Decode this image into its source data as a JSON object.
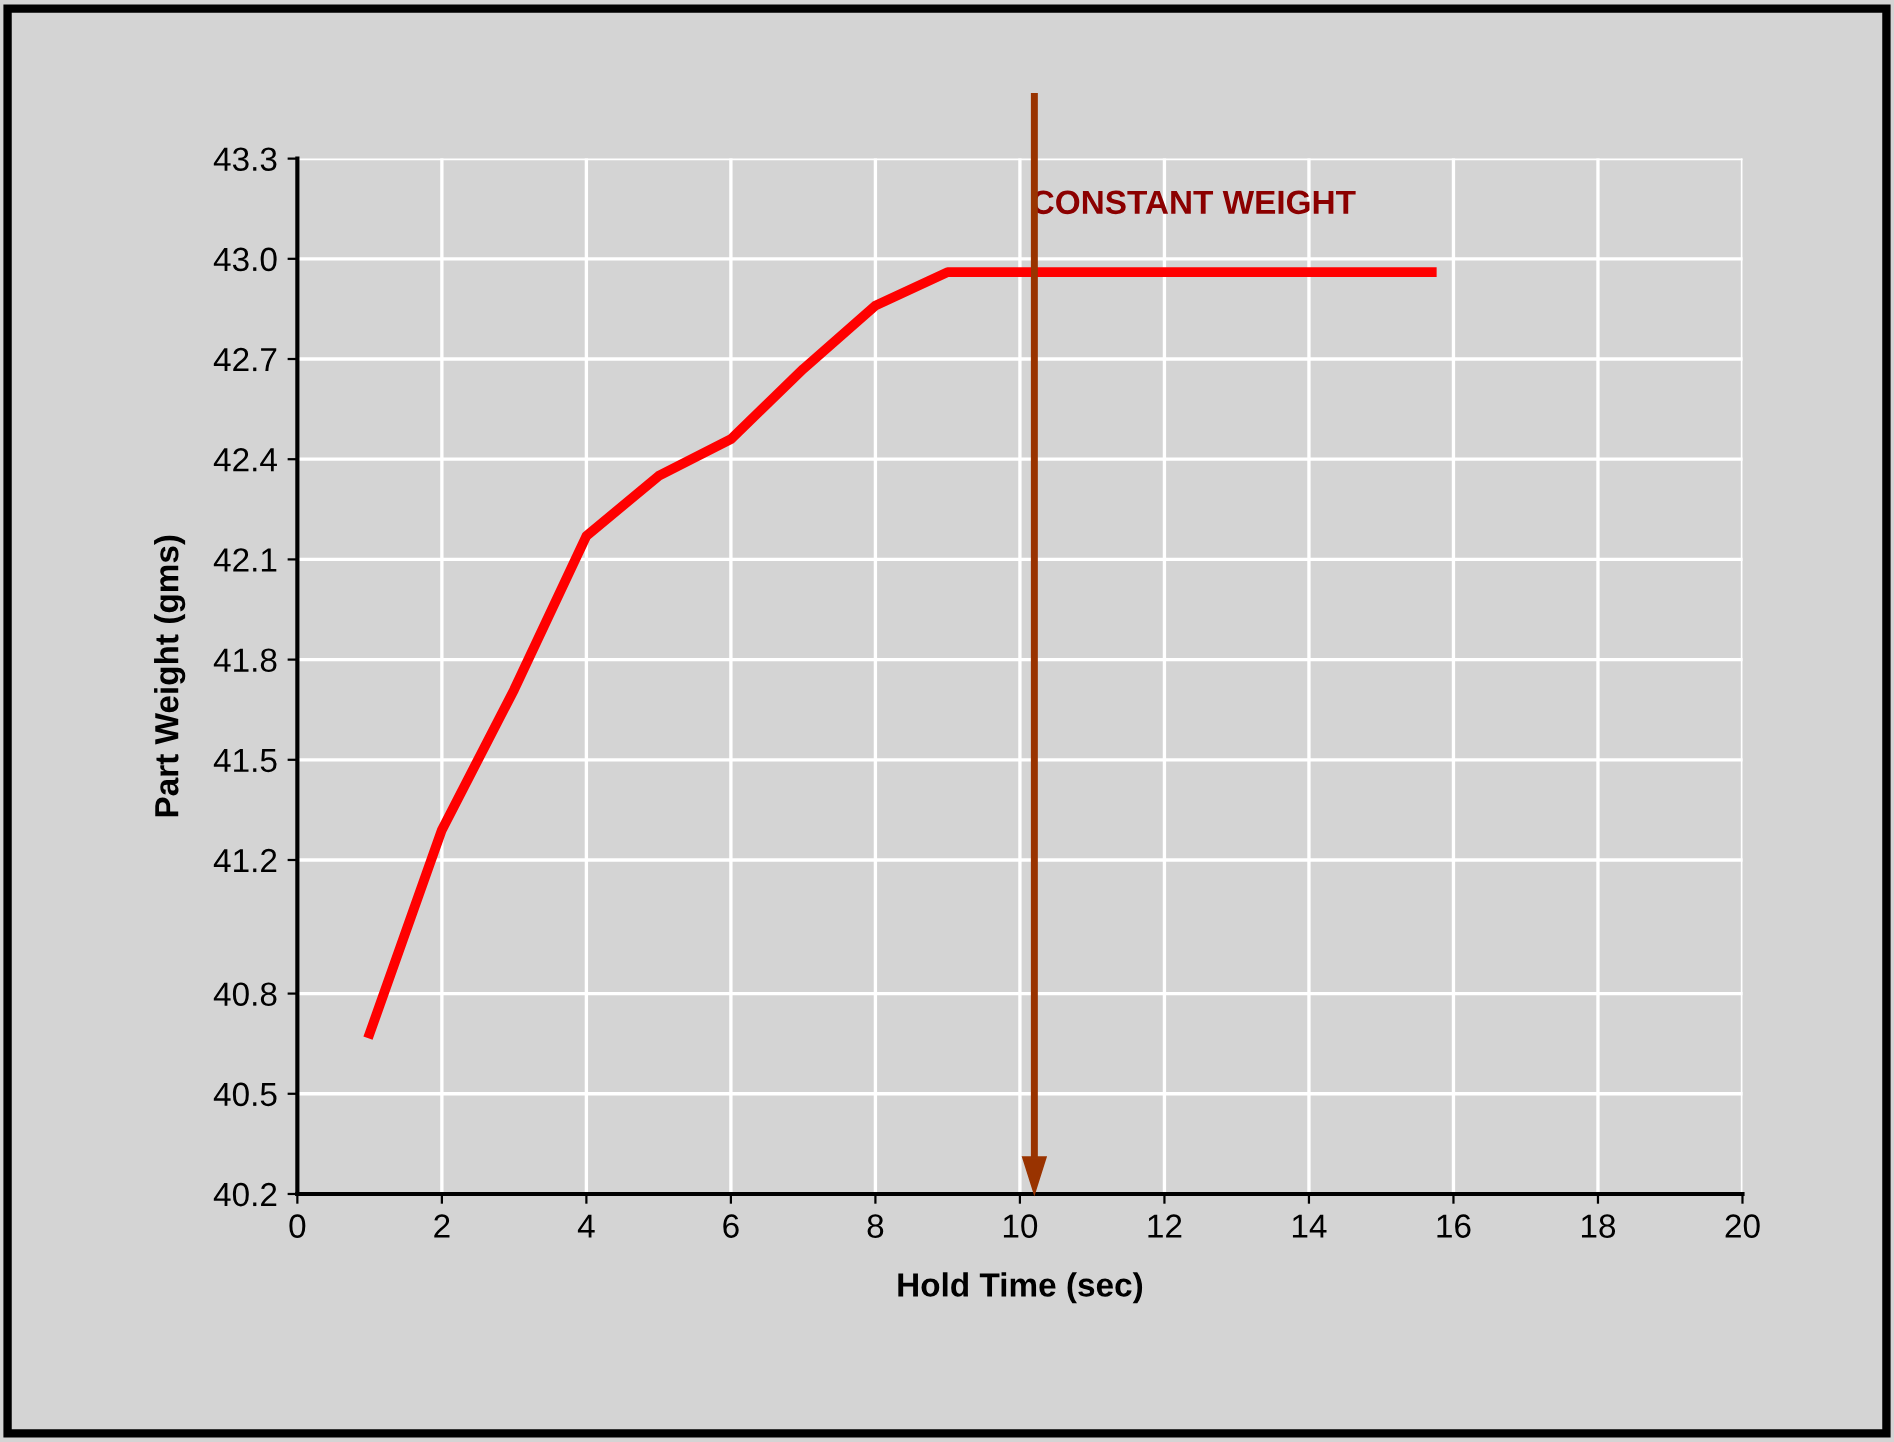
{
  "chart_data": {
    "type": "line",
    "xlabel": "Hold Time (sec)",
    "ylabel": "Part Weight (gms)",
    "x": [
      1,
      2,
      3,
      4,
      5,
      6,
      7,
      8,
      9,
      15.7
    ],
    "series": [
      {
        "color": "#ff0000",
        "values": [
          40.68,
          41.29,
          41.71,
          42.17,
          42.35,
          42.46,
          42.67,
          42.86,
          42.96,
          42.96
        ]
      }
    ],
    "xlim": [
      0,
      20
    ],
    "xticks": [
      0,
      2,
      4,
      6,
      8,
      10,
      12,
      14,
      16,
      18,
      20
    ],
    "ylim": [
      40.2,
      43.3
    ],
    "yticks": [
      40.2,
      40.5,
      40.8,
      41.2,
      41.5,
      41.8,
      42.1,
      42.4,
      42.7,
      {
        "value": 43,
        "label": "43.0"
      },
      43.3
    ],
    "ref_lines": [
      {
        "axis": "x",
        "value": 10.2,
        "color": "#993300"
      }
    ],
    "annotations": [
      "CONSTANT WEIGHT"
    ],
    "grid": true,
    "marker": "none",
    "line_style": "solid"
  }
}
